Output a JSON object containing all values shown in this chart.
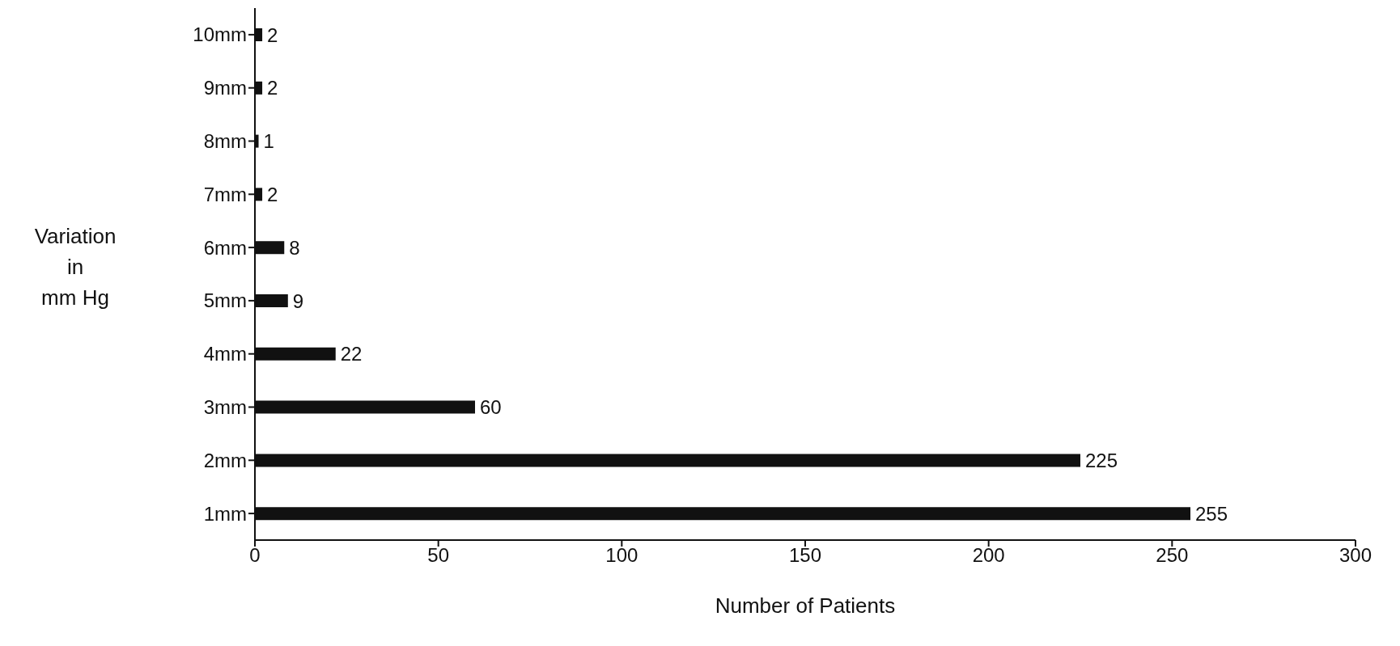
{
  "chart_data": {
    "type": "bar",
    "orientation": "horizontal",
    "categories": [
      "10mm",
      "9mm",
      "8mm",
      "7mm",
      "6mm",
      "5mm",
      "4mm",
      "3mm",
      "2mm",
      "1mm"
    ],
    "values": [
      2,
      2,
      1,
      2,
      8,
      9,
      22,
      60,
      225,
      255
    ],
    "color": "#111111",
    "xlim": [
      0,
      300
    ],
    "xticks": [
      0,
      50,
      100,
      150,
      200,
      250,
      300
    ],
    "xlabel": "Number of Patients",
    "ylabel": "Variation\nin\nmm Hg",
    "data_labels": true,
    "grid": false,
    "legend": false
  }
}
